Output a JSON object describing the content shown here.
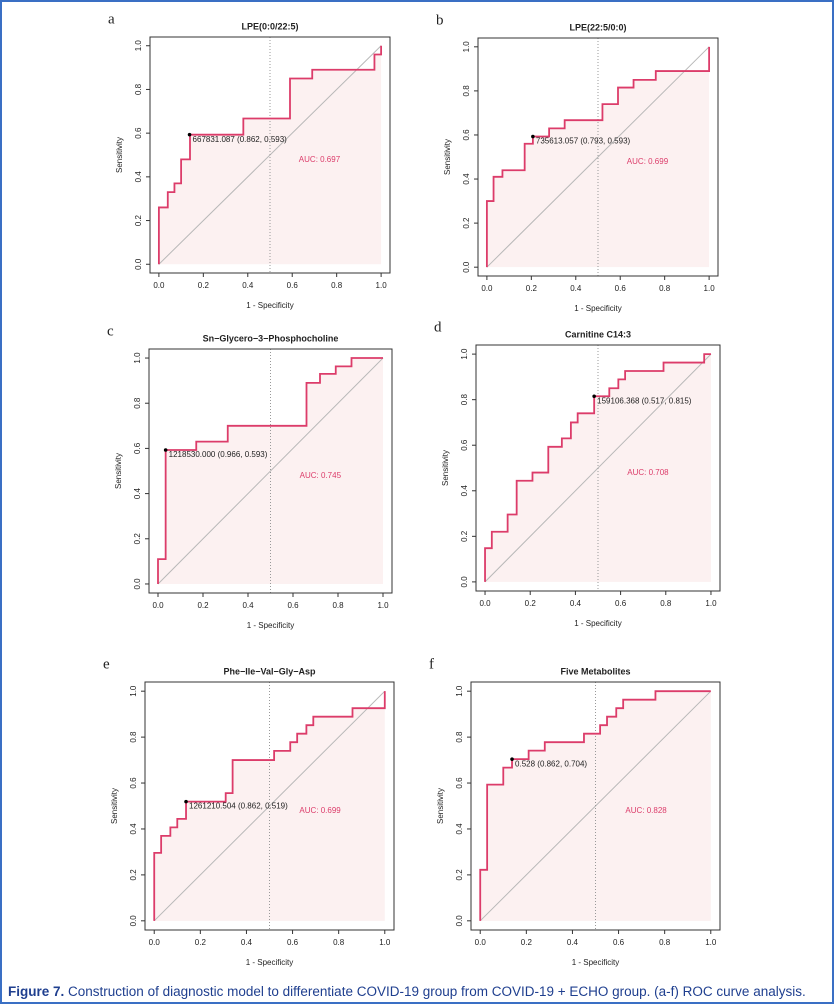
{
  "chart_data": [
    {
      "type": "line",
      "panel_label": "a",
      "title": "LPE(0:0/22:5)",
      "xlabel": "1 - Specificity",
      "ylabel": "Sensitivity",
      "x": [
        0,
        0,
        0.04,
        0.04,
        0.07,
        0.07,
        0.1,
        0.1,
        0.14,
        0.14,
        0.38,
        0.38,
        0.59,
        0.59,
        0.69,
        0.69,
        0.97,
        0.97,
        1,
        1
      ],
      "values": [
        0,
        0.26,
        0.26,
        0.33,
        0.33,
        0.37,
        0.37,
        0.48,
        0.48,
        0.593,
        0.593,
        0.667,
        0.667,
        0.85,
        0.85,
        0.89,
        0.89,
        0.96,
        0.96,
        1
      ],
      "color": "#dc3c6a",
      "fill": "#fcf1f1",
      "annotation": {
        "text": "667831.087 (0.862, 0.593)",
        "x": 0.138,
        "y": 0.593
      },
      "auc": "AUC: 0.697",
      "xlim": [
        -0.04,
        1.04
      ],
      "ylim": [
        -0.04,
        1.04
      ],
      "xticks": [
        {
          "value": 0,
          "label": "0.0"
        },
        0.2,
        0.4,
        0.6,
        0.8,
        {
          "value": 1,
          "label": "1.0"
        }
      ],
      "yticks": [
        {
          "value": 0,
          "label": "0.0"
        },
        0.2,
        0.4,
        0.6,
        0.8,
        {
          "value": 1,
          "label": "1.0"
        }
      ]
    },
    {
      "type": "line",
      "panel_label": "b",
      "title": "LPE(22:5/0:0)",
      "xlabel": "1 - Specificity",
      "ylabel": "Sensitivity",
      "x": [
        0,
        0,
        0.03,
        0.03,
        0.07,
        0.07,
        0.17,
        0.17,
        0.207,
        0.207,
        0.28,
        0.28,
        0.35,
        0.35,
        0.52,
        0.52,
        0.59,
        0.59,
        0.66,
        0.66,
        0.76,
        0.76,
        1,
        1
      ],
      "values": [
        0,
        0.3,
        0.3,
        0.41,
        0.41,
        0.44,
        0.44,
        0.56,
        0.56,
        0.593,
        0.593,
        0.63,
        0.63,
        0.667,
        0.667,
        0.74,
        0.74,
        0.815,
        0.815,
        0.85,
        0.85,
        0.89,
        0.89,
        1
      ],
      "color": "#dc3c6a",
      "fill": "#fcf1f1",
      "annotation": {
        "text": "735613.057 (0.793, 0.593)",
        "x": 0.207,
        "y": 0.593
      },
      "auc": "AUC: 0.699",
      "xlim": [
        -0.04,
        1.04
      ],
      "ylim": [
        -0.04,
        1.04
      ],
      "xticks": [
        {
          "value": 0,
          "label": "0.0"
        },
        0.2,
        0.4,
        0.6,
        0.8,
        {
          "value": 1,
          "label": "1.0"
        }
      ],
      "yticks": [
        {
          "value": 0,
          "label": "0.0"
        },
        0.2,
        0.4,
        0.6,
        0.8,
        {
          "value": 1,
          "label": "1.0"
        }
      ]
    },
    {
      "type": "line",
      "panel_label": "c",
      "title": "Sn−Glycero−3−Phosphocholine",
      "xlabel": "1 - Specificity",
      "ylabel": "Sensitivity",
      "x": [
        0,
        0,
        0.034,
        0.034,
        0.17,
        0.17,
        0.31,
        0.31,
        0.66,
        0.66,
        0.72,
        0.72,
        0.79,
        0.79,
        0.86,
        0.86,
        1
      ],
      "values": [
        0,
        0.11,
        0.11,
        0.593,
        0.593,
        0.63,
        0.63,
        0.7,
        0.7,
        0.89,
        0.89,
        0.93,
        0.93,
        0.963,
        0.963,
        1,
        1
      ],
      "color": "#dc3c6a",
      "fill": "#fcf1f1",
      "annotation": {
        "text": "1218530.000 (0.966, 0.593)",
        "x": 0.034,
        "y": 0.593
      },
      "auc": "AUC: 0.745",
      "xlim": [
        -0.04,
        1.04
      ],
      "ylim": [
        -0.04,
        1.04
      ],
      "xticks": [
        {
          "value": 0,
          "label": "0.0"
        },
        0.2,
        0.4,
        0.6,
        0.8,
        {
          "value": 1,
          "label": "1.0"
        }
      ],
      "yticks": [
        {
          "value": 0,
          "label": "0.0"
        },
        0.2,
        0.4,
        0.6,
        0.8,
        {
          "value": 1,
          "label": "1.0"
        }
      ]
    },
    {
      "type": "line",
      "panel_label": "d",
      "title": "Carnitine C14:3",
      "xlabel": "1 - Specificity",
      "ylabel": "Sensitivity",
      "x": [
        0,
        0,
        0.03,
        0.03,
        0.1,
        0.1,
        0.14,
        0.14,
        0.21,
        0.21,
        0.28,
        0.28,
        0.34,
        0.34,
        0.38,
        0.38,
        0.41,
        0.41,
        0.483,
        0.483,
        0.55,
        0.55,
        0.59,
        0.59,
        0.62,
        0.62,
        0.79,
        0.79,
        0.97,
        0.97,
        1
      ],
      "values": [
        0,
        0.148,
        0.148,
        0.22,
        0.22,
        0.296,
        0.296,
        0.444,
        0.444,
        0.48,
        0.48,
        0.593,
        0.593,
        0.63,
        0.63,
        0.7,
        0.7,
        0.74,
        0.74,
        0.815,
        0.815,
        0.85,
        0.85,
        0.889,
        0.889,
        0.926,
        0.926,
        0.963,
        0.963,
        1,
        1
      ],
      "color": "#dc3c6a",
      "fill": "#fcf1f1",
      "annotation": {
        "text": "159106.368 (0.517, 0.815)",
        "x": 0.483,
        "y": 0.815
      },
      "auc": "AUC: 0.708",
      "xlim": [
        -0.04,
        1.04
      ],
      "ylim": [
        -0.04,
        1.04
      ],
      "xticks": [
        {
          "value": 0,
          "label": "0.0"
        },
        0.2,
        0.4,
        0.6,
        0.8,
        {
          "value": 1,
          "label": "1.0"
        }
      ],
      "yticks": [
        {
          "value": 0,
          "label": "0.0"
        },
        0.2,
        0.4,
        0.6,
        0.8,
        {
          "value": 1,
          "label": "1.0"
        }
      ]
    },
    {
      "type": "line",
      "panel_label": "e",
      "title": "Phe−Ile−Val−Gly−Asp",
      "xlabel": "1 - Specificity",
      "ylabel": "Sensitivity",
      "x": [
        0,
        0,
        0.03,
        0.03,
        0.07,
        0.07,
        0.1,
        0.1,
        0.138,
        0.138,
        0.31,
        0.31,
        0.34,
        0.34,
        0.52,
        0.52,
        0.59,
        0.59,
        0.62,
        0.62,
        0.66,
        0.66,
        0.69,
        0.69,
        0.86,
        0.86,
        1,
        1
      ],
      "values": [
        0,
        0.296,
        0.296,
        0.37,
        0.37,
        0.407,
        0.407,
        0.444,
        0.444,
        0.519,
        0.519,
        0.556,
        0.556,
        0.7,
        0.7,
        0.74,
        0.74,
        0.778,
        0.778,
        0.815,
        0.815,
        0.852,
        0.852,
        0.889,
        0.889,
        0.926,
        0.926,
        1
      ],
      "color": "#dc3c6a",
      "fill": "#fcf1f1",
      "annotation": {
        "text": "1261210.504 (0.862, 0.519)",
        "x": 0.138,
        "y": 0.519
      },
      "auc": "AUC: 0.699",
      "xlim": [
        -0.04,
        1.04
      ],
      "ylim": [
        -0.04,
        1.04
      ],
      "xticks": [
        {
          "value": 0,
          "label": "0.0"
        },
        0.2,
        0.4,
        0.6,
        0.8,
        {
          "value": 1,
          "label": "1.0"
        }
      ],
      "yticks": [
        {
          "value": 0,
          "label": "0.0"
        },
        0.2,
        0.4,
        0.6,
        0.8,
        {
          "value": 1,
          "label": "1.0"
        }
      ]
    },
    {
      "type": "line",
      "panel_label": "f",
      "title": "Five Metabolites",
      "xlabel": "1 - Specificity",
      "ylabel": "Sensitivity",
      "x": [
        0,
        0,
        0.03,
        0.03,
        0.1,
        0.1,
        0.138,
        0.138,
        0.21,
        0.21,
        0.28,
        0.28,
        0.45,
        0.45,
        0.52,
        0.52,
        0.55,
        0.55,
        0.59,
        0.59,
        0.62,
        0.62,
        0.76,
        0.76,
        1
      ],
      "values": [
        0,
        0.222,
        0.222,
        0.593,
        0.593,
        0.667,
        0.667,
        0.704,
        0.704,
        0.741,
        0.741,
        0.778,
        0.778,
        0.815,
        0.815,
        0.852,
        0.852,
        0.889,
        0.889,
        0.926,
        0.926,
        0.963,
        0.963,
        1,
        1
      ],
      "color": "#dc3c6a",
      "fill": "#fcf1f1",
      "annotation": {
        "text": "0.528 (0.862, 0.704)",
        "x": 0.138,
        "y": 0.704
      },
      "auc": "AUC: 0.828",
      "xlim": [
        -0.04,
        1.04
      ],
      "ylim": [
        -0.04,
        1.04
      ],
      "xticks": [
        {
          "value": 0,
          "label": "0.0"
        },
        0.2,
        0.4,
        0.6,
        0.8,
        {
          "value": 1,
          "label": "1.0"
        }
      ],
      "yticks": [
        {
          "value": 0,
          "label": "0.0"
        },
        0.2,
        0.4,
        0.6,
        0.8,
        {
          "value": 1,
          "label": "1.0"
        }
      ]
    }
  ],
  "caption_label": "Figure 7.",
  "caption": "Construction of diagnostic model to differentiate COVID-19 group from COVID-19 + ECHO group. (a-f) ROC curve analysis."
}
